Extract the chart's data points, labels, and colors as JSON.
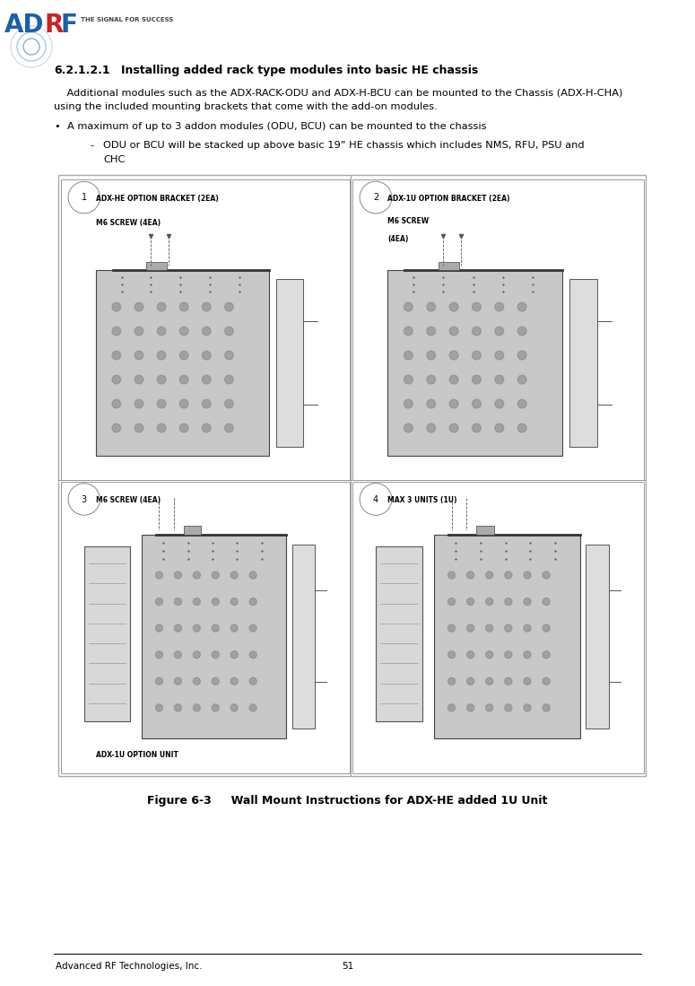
{
  "page_width": 7.75,
  "page_height": 10.99,
  "background_color": "#ffffff",
  "logo_color": "#1a5fa8",
  "logo_red": "#cc2222",
  "logo_subtext": "THE SIGNAL FOR SUCCESS",
  "section_heading_num": "6.2.1.2.1",
  "section_heading_text": "Installing added rack type modules into basic HE chassis",
  "body_line1": "    Additional modules such as the ADX-RACK-ODU and ADX-H-BCU can be mounted to the Chassis (ADX-H-CHA)",
  "body_line2": "using the included mounting brackets that come with the add-on modules.",
  "bullet1": "A maximum of up to 3 addon modules (ODU, BCU) can be mounted to the chassis",
  "subbullet1": "ODU or BCU will be stacked up above basic 19” HE chassis which includes NMS, RFU, PSU and",
  "subbullet2": "CHC",
  "figure_caption": "Figure 6-3     Wall Mount Instructions for ADX-HE added 1U Unit",
  "footer_left": "Advanced RF Technologies, Inc.",
  "footer_center": "51",
  "text_color": "#000000",
  "gray_border": "#aaaaaa",
  "panel_border": "#999999",
  "panel1_labels": [
    "ADX-HE OPTION BRACKET (2EA)",
    "M6 SCREW (4EA)"
  ],
  "panel2_labels": [
    "ADX-1U OPTION BRACKET (2EA)",
    "M6 SCREW\n(4EA)"
  ],
  "panel3_labels": [
    "M6 SCREW (4EA)",
    "ADX-1U OPTION UNIT"
  ],
  "panel4_labels": [
    "MAX 3 UNITS (1U)"
  ],
  "panel_numbers": [
    "1",
    "2",
    "3",
    "4"
  ]
}
